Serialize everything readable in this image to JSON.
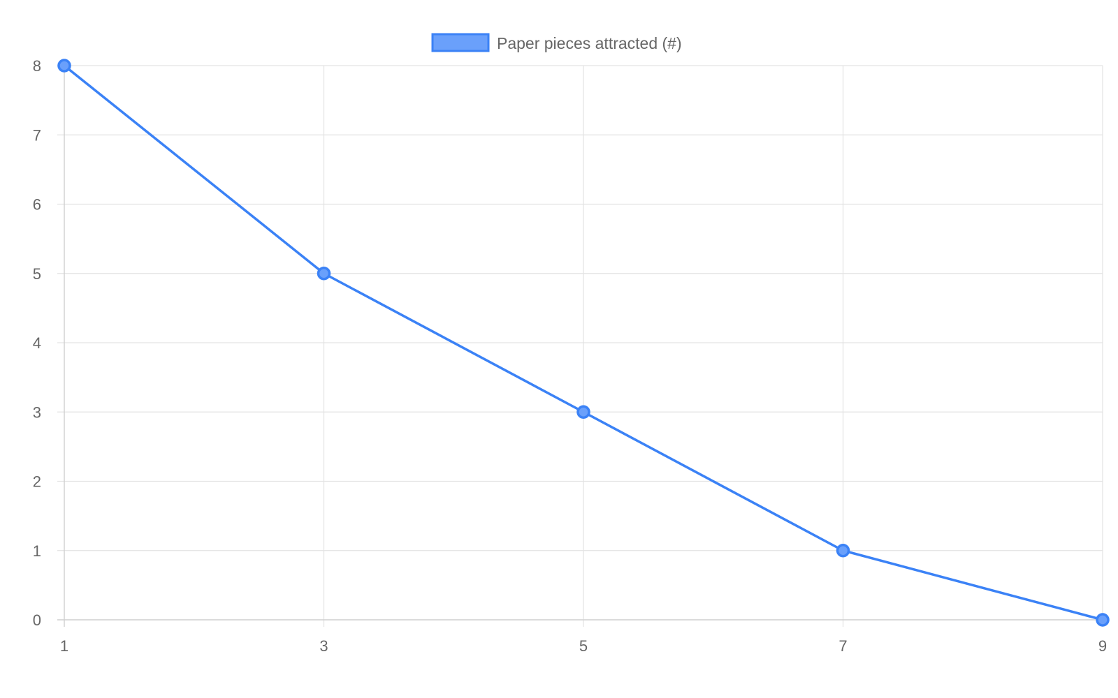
{
  "chart_data": {
    "type": "line",
    "x": [
      1,
      3,
      5,
      7,
      9
    ],
    "series": [
      {
        "name": "Paper pieces attracted (#)",
        "values": [
          8,
          5,
          3,
          1,
          0
        ]
      }
    ],
    "xlim": [
      1,
      9
    ],
    "ylim": [
      0,
      8
    ],
    "xticks": [
      "1",
      "3",
      "5",
      "7",
      "9"
    ],
    "yticks": [
      "0",
      "1",
      "2",
      "3",
      "4",
      "5",
      "6",
      "7",
      "8"
    ],
    "grid": true,
    "legend_position": "top-center",
    "title": "",
    "xlabel": "",
    "ylabel": ""
  },
  "colors": {
    "line": "#3b82f6",
    "legend_fill": "#6aa0fb",
    "grid": "#e3e3e3",
    "axis": "#cfcfcf",
    "text": "#666666"
  }
}
